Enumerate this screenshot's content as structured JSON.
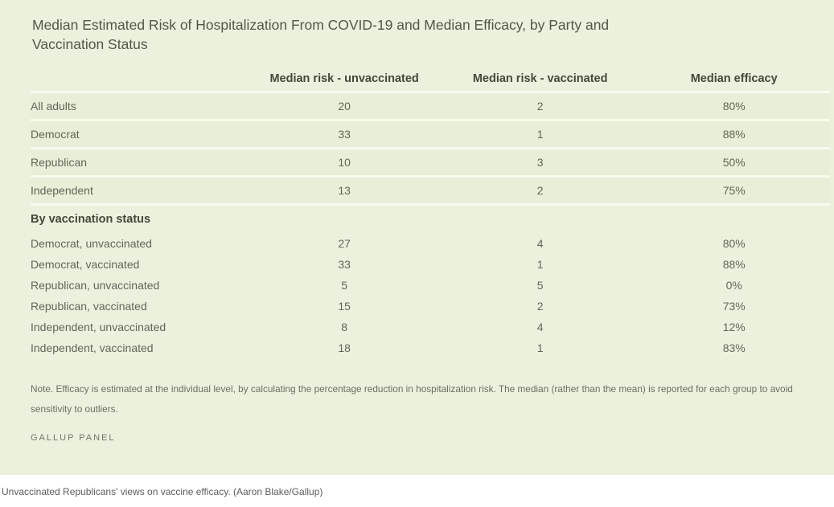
{
  "chart_data": {
    "type": "table",
    "title": "Median Estimated Risk of Hospitalization From COVID-19 and Median Efficacy, by Party and Vaccination Status",
    "columns": [
      "Median risk - unvaccinated",
      "Median risk - vaccinated",
      "Median efficacy"
    ],
    "rows": [
      {
        "label": "All adults",
        "risk_unvaccinated": "20",
        "risk_vaccinated": "2",
        "efficacy": "80%"
      },
      {
        "label": "Democrat",
        "risk_unvaccinated": "33",
        "risk_vaccinated": "1",
        "efficacy": "88%"
      },
      {
        "label": "Republican",
        "risk_unvaccinated": "10",
        "risk_vaccinated": "3",
        "efficacy": "50%"
      },
      {
        "label": "Independent",
        "risk_unvaccinated": "13",
        "risk_vaccinated": "2",
        "efficacy": "75%"
      }
    ],
    "section": {
      "label": "By vaccination status",
      "rows": [
        {
          "label": "Democrat, unvaccinated",
          "risk_unvaccinated": "27",
          "risk_vaccinated": "4",
          "efficacy": "80%"
        },
        {
          "label": "Democrat, vaccinated",
          "risk_unvaccinated": "33",
          "risk_vaccinated": "1",
          "efficacy": "88%"
        },
        {
          "label": "Republican, unvaccinated",
          "risk_unvaccinated": "5",
          "risk_vaccinated": "5",
          "efficacy": "0%"
        },
        {
          "label": "Republican, vaccinated",
          "risk_unvaccinated": "15",
          "risk_vaccinated": "2",
          "efficacy": "73%"
        },
        {
          "label": "Independent, unvaccinated",
          "risk_unvaccinated": "8",
          "risk_vaccinated": "4",
          "efficacy": "12%"
        },
        {
          "label": "Independent, vaccinated",
          "risk_unvaccinated": "18",
          "risk_vaccinated": "1",
          "efficacy": "83%"
        }
      ]
    },
    "note": "Note. Efficacy is estimated at the individual level, by calculating the percentage reduction in hospitalization risk. The median (rather than the mean) is reported for each group to avoid sensitivity to outliers.",
    "source": "GALLUP PANEL"
  },
  "caption": "Unvaccinated Republicans' views on vaccine efficacy. (Aaron Blake/Gallup)",
  "colors": {
    "panel_bg": "#ebf1dd",
    "row_band": "#e8eed7",
    "divider": "#f7faec",
    "title_text": "#54574a",
    "header_text": "#45483a",
    "body_text": "#63665a",
    "note_text": "#6c6f5f",
    "source_text": "#73766a",
    "caption_text": "#5b5b5b"
  }
}
